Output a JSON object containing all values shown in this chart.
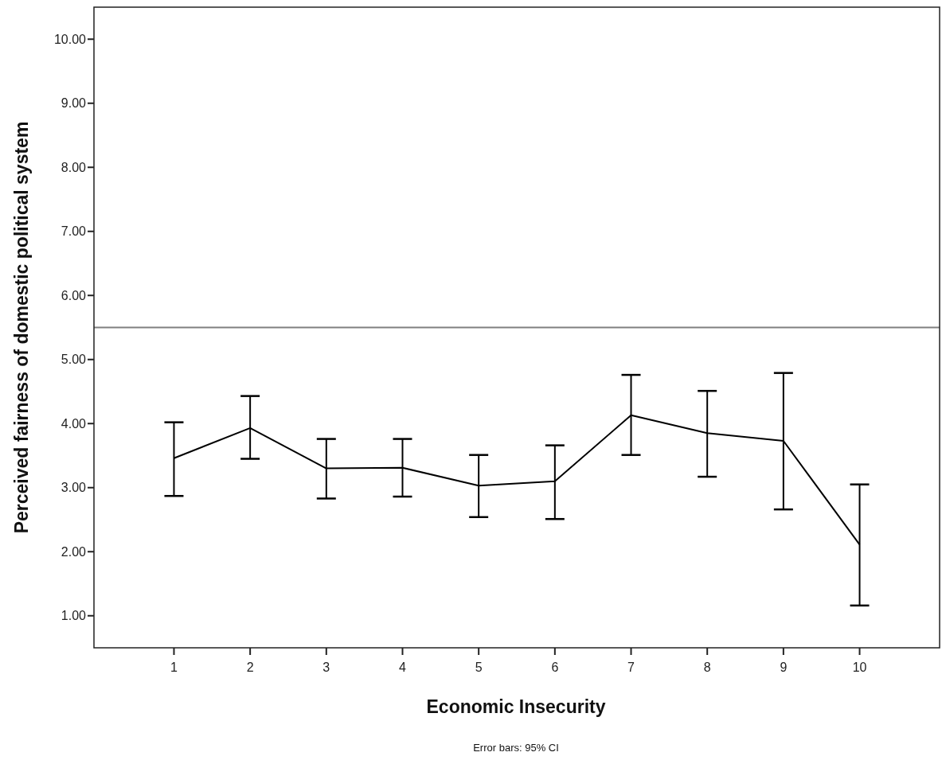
{
  "chart_data": {
    "type": "line",
    "xlabel": "Economic Insecurity",
    "ylabel": "Perceived fairness of domestic political system",
    "annotations": [
      "Error bars: 95% CI"
    ],
    "x": [
      1,
      2,
      3,
      4,
      5,
      6,
      7,
      8,
      9,
      10
    ],
    "series": [
      {
        "color": "#000000",
        "values": [
          3.46,
          3.93,
          3.3,
          3.31,
          3.03,
          3.1,
          4.13,
          3.85,
          3.73,
          2.11
        ],
        "errors": [
          [
            2.87,
            4.02
          ],
          [
            3.45,
            4.43
          ],
          [
            2.83,
            3.76
          ],
          [
            2.86,
            3.76
          ],
          [
            2.54,
            3.51
          ],
          [
            2.51,
            3.66
          ],
          [
            3.51,
            4.76
          ],
          [
            3.17,
            4.51
          ],
          [
            2.66,
            4.79
          ],
          [
            1.16,
            3.05
          ]
        ]
      }
    ],
    "xlim": [
      -0.05,
      11.05
    ],
    "xticks": [
      1,
      2,
      3,
      4,
      5,
      6,
      7,
      8,
      9,
      10
    ],
    "ylim": [
      0.5,
      10.5
    ],
    "yticks": [
      {
        "value": 1,
        "label": "1.00"
      },
      {
        "value": 2,
        "label": "2.00"
      },
      {
        "value": 3,
        "label": "3.00"
      },
      {
        "value": 4,
        "label": "4.00"
      },
      {
        "value": 5,
        "label": "5.00"
      },
      {
        "value": 6,
        "label": "6.00"
      },
      {
        "value": 7,
        "label": "7.00"
      },
      {
        "value": 8,
        "label": "8.00"
      },
      {
        "value": 9,
        "label": "9.00"
      },
      {
        "value": 10,
        "label": "10.00"
      }
    ],
    "ref_lines": [
      {
        "axis": "y",
        "value": 5.5,
        "color": "#808080"
      }
    ],
    "grid": false,
    "marker": "none",
    "line_style": "solid"
  }
}
